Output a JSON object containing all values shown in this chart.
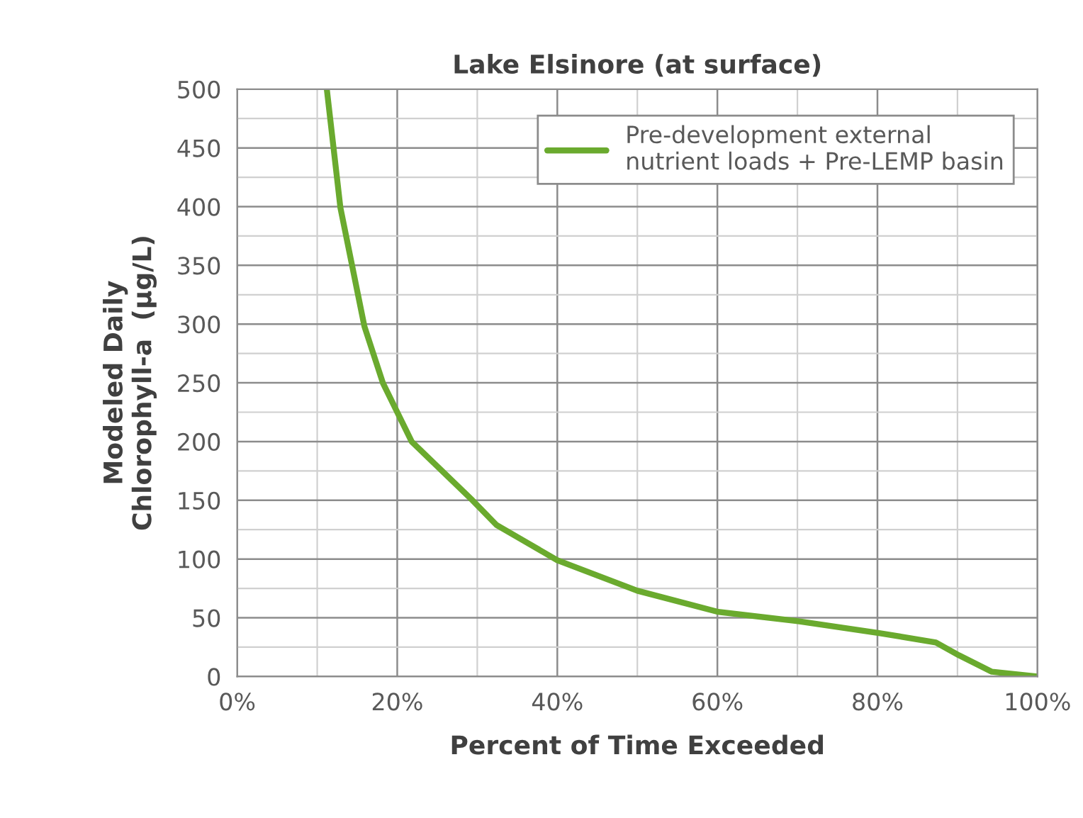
{
  "chart_data": {
    "type": "line",
    "title": "Lake Elsinore (at surface)",
    "xlabel": "Percent of Time Exceeded",
    "ylabel": "Modeled Daily\nChlorophyll-a  (µg/L)",
    "series": [
      {
        "name": "Pre-development external\nnutrient loads + Pre-LEMP basin",
        "color": "#6aaa2e",
        "x": [
          11.2,
          12.9,
          15.9,
          18.2,
          21.8,
          29.4,
          32.4,
          40,
          50,
          60.1,
          70.1,
          80.2,
          87.3,
          90.2,
          94.3,
          100
        ],
        "values": [
          500,
          399,
          298,
          250,
          200,
          150,
          129,
          99,
          73,
          55,
          47,
          37,
          29,
          18,
          4,
          0
        ]
      }
    ],
    "xlim": [
      0,
      100
    ],
    "xticks": [
      {
        "value": 0,
        "label": "0%"
      },
      {
        "value": 20,
        "label": "20%"
      },
      {
        "value": 40,
        "label": "40%"
      },
      {
        "value": 60,
        "label": "60%"
      },
      {
        "value": 80,
        "label": "80%"
      },
      {
        "value": 100,
        "label": "100%"
      }
    ],
    "ylim": [
      0,
      500
    ],
    "yticks": [
      0,
      50,
      100,
      150,
      200,
      250,
      300,
      350,
      400,
      450,
      500
    ],
    "grid": true,
    "legend": "top right",
    "marker": "none",
    "line_style": "solid"
  }
}
